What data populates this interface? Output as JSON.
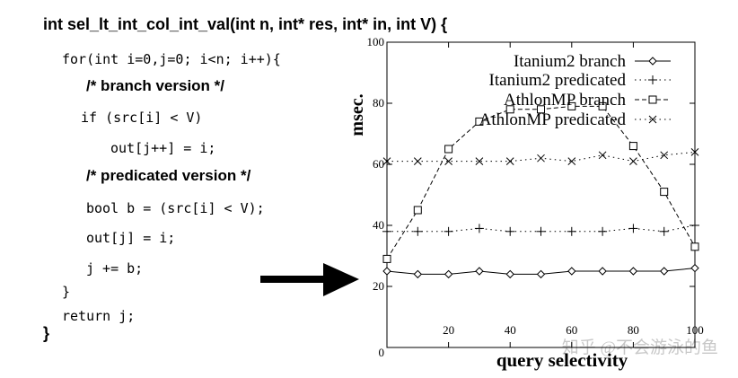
{
  "code": {
    "signature": "int sel_lt_int_col_int_val(int n, int* res, int* in, int V) {",
    "lines": [
      "for(int i=0,j=0; i<n; i++){",
      "if (src[i] < V)",
      "out[j++] = i;",
      "bool b = (src[i] < V);",
      "out[j] = i;",
      "j += b;",
      "}",
      "return j;"
    ],
    "comment_branch": "/* branch version */",
    "comment_predicated": "/* predicated version */",
    "closing_brace": "}"
  },
  "watermark": "知乎 @不会游泳的鱼",
  "chart_data": {
    "type": "line",
    "xlabel": "query selectivity",
    "ylabel": "msec.",
    "xlim": [
      0,
      100
    ],
    "ylim": [
      0,
      100
    ],
    "xticks": [
      20,
      40,
      60,
      80,
      100
    ],
    "yticks": [
      0,
      20,
      40,
      60,
      80,
      100
    ],
    "grid": false,
    "legend_position": "top-right",
    "x": [
      0,
      10,
      20,
      30,
      40,
      50,
      60,
      70,
      80,
      90,
      100
    ],
    "series": [
      {
        "name": "Itanium2 branch",
        "marker": "diamond",
        "dash": "solid",
        "values": [
          25,
          24,
          24,
          25,
          24,
          24,
          25,
          25,
          25,
          25,
          26
        ]
      },
      {
        "name": "Itanium2 predicated",
        "marker": "plus",
        "dash": "dotted",
        "values": [
          38,
          38,
          38,
          39,
          38,
          38,
          38,
          38,
          39,
          38,
          40
        ]
      },
      {
        "name": "AthlonMP branch",
        "marker": "square",
        "dash": "dashed",
        "values": [
          29,
          45,
          65,
          74,
          78,
          78,
          79,
          79,
          66,
          51,
          33
        ]
      },
      {
        "name": "AthlonMP predicated",
        "marker": "cross",
        "dash": "dashdot",
        "values": [
          61,
          61,
          61,
          61,
          61,
          62,
          61,
          63,
          61,
          63,
          64
        ]
      }
    ]
  }
}
